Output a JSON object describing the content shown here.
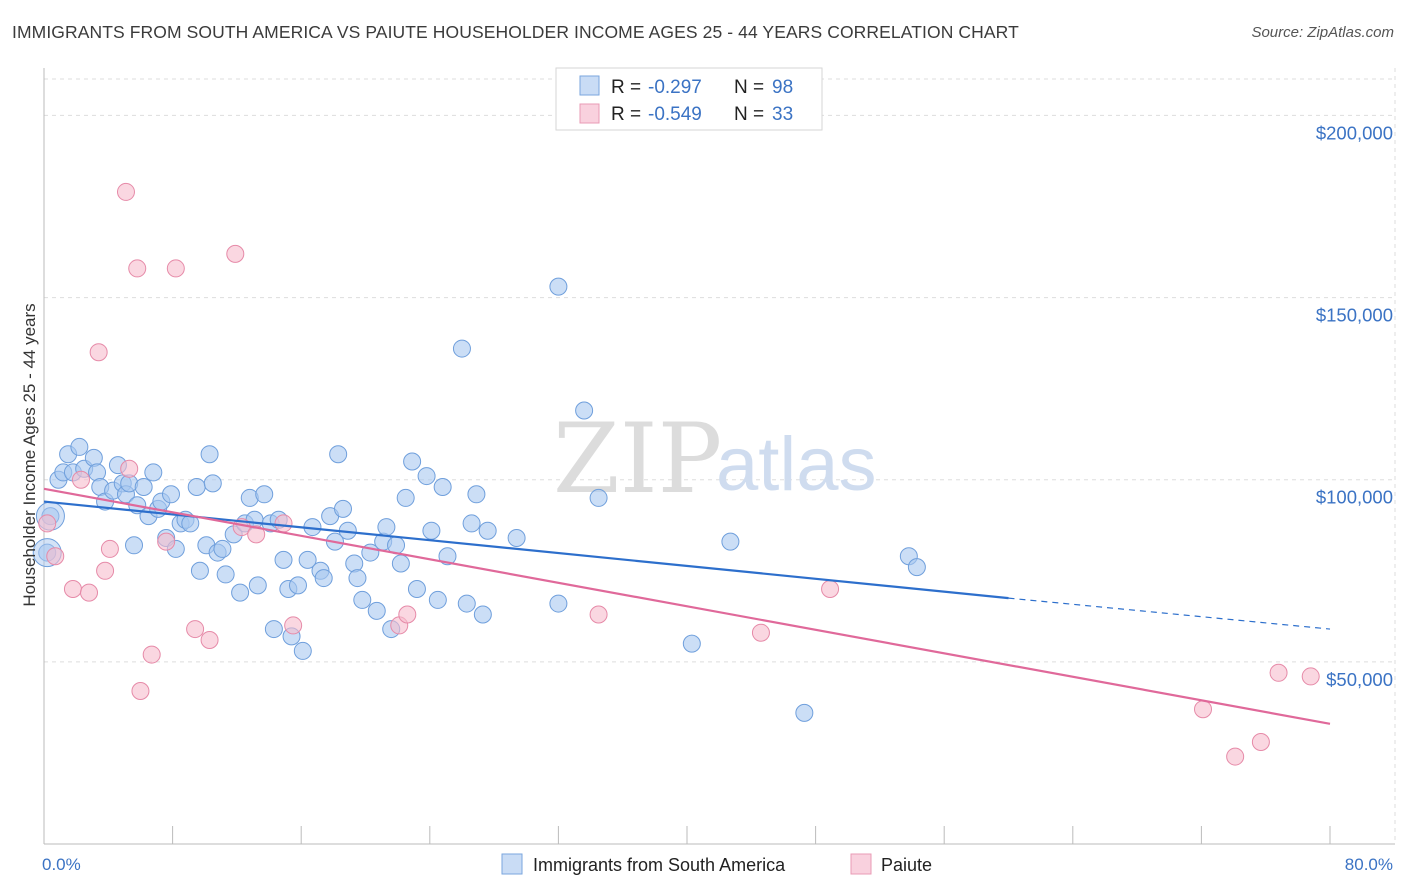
{
  "title": "IMMIGRANTS FROM SOUTH AMERICA VS PAIUTE HOUSEHOLDER INCOME AGES 25 - 44 YEARS CORRELATION CHART",
  "source": "Source: ZipAtlas.com",
  "watermark": {
    "zip": "ZIP",
    "atlas": "atlas"
  },
  "legend_box": {
    "rows": [
      {
        "r_label": "R = ",
        "r_value": "-0.297",
        "n_label": "N = ",
        "n_value": "98"
      },
      {
        "r_label": "R = ",
        "r_value": "-0.549",
        "n_label": "N = ",
        "n_value": "33"
      }
    ]
  },
  "colors": {
    "blue_fill": "#a9c8f0",
    "blue_stroke": "#6f9fdc",
    "blue_line": "#2d6fcc",
    "pink_fill": "#f6bccd",
    "pink_stroke": "#e68aa8",
    "pink_line": "#e0699a",
    "grid": "#dddddd",
    "axis_text": "#3b73c4"
  },
  "chart_data": {
    "type": "scatter",
    "title": "IMMIGRANTS FROM SOUTH AMERICA VS PAIUTE HOUSEHOLDER INCOME AGES 25 - 44 YEARS CORRELATION CHART",
    "xlabel": "",
    "ylabel": "Householder Income Ages 25 - 44 years",
    "xlim": [
      0,
      80
    ],
    "ylim": [
      0,
      210000
    ],
    "x_tick_labels": [
      "0.0%",
      "80.0%"
    ],
    "y_ticks": [
      50000,
      100000,
      150000,
      200000
    ],
    "y_tick_labels": [
      "$50,000",
      "$100,000",
      "$150,000",
      "$200,000"
    ],
    "grid": true,
    "legend_position": "bottom-center",
    "series": [
      {
        "name": "Immigrants from South America",
        "trend": {
          "x": [
            0,
            60
          ],
          "y": [
            94000,
            67500
          ],
          "dashed_extension_to": [
            80,
            59000
          ]
        },
        "points": [
          [
            0.2,
            80000
          ],
          [
            0.4,
            90000
          ],
          [
            0.9,
            100000
          ],
          [
            1.2,
            102000
          ],
          [
            1.5,
            107000
          ],
          [
            1.8,
            102000
          ],
          [
            2.2,
            109000
          ],
          [
            2.5,
            103000
          ],
          [
            3.1,
            106000
          ],
          [
            3.3,
            102000
          ],
          [
            3.5,
            98000
          ],
          [
            3.8,
            94000
          ],
          [
            4.3,
            97000
          ],
          [
            4.6,
            104000
          ],
          [
            4.9,
            99000
          ],
          [
            5.1,
            96000
          ],
          [
            5.3,
            99000
          ],
          [
            5.6,
            82000
          ],
          [
            5.8,
            93000
          ],
          [
            6.2,
            98000
          ],
          [
            6.5,
            90000
          ],
          [
            6.8,
            102000
          ],
          [
            7.1,
            92000
          ],
          [
            7.3,
            94000
          ],
          [
            7.6,
            84000
          ],
          [
            7.9,
            96000
          ],
          [
            8.2,
            81000
          ],
          [
            8.5,
            88000
          ],
          [
            8.8,
            89000
          ],
          [
            9.1,
            88000
          ],
          [
            9.5,
            98000
          ],
          [
            9.7,
            75000
          ],
          [
            10.1,
            82000
          ],
          [
            10.3,
            107000
          ],
          [
            10.5,
            99000
          ],
          [
            10.8,
            80000
          ],
          [
            11.1,
            81000
          ],
          [
            11.3,
            74000
          ],
          [
            11.8,
            85000
          ],
          [
            12.2,
            69000
          ],
          [
            12.5,
            88000
          ],
          [
            12.8,
            95000
          ],
          [
            13.1,
            89000
          ],
          [
            13.3,
            71000
          ],
          [
            13.7,
            96000
          ],
          [
            14.1,
            88000
          ],
          [
            14.3,
            59000
          ],
          [
            14.6,
            89000
          ],
          [
            14.9,
            78000
          ],
          [
            15.2,
            70000
          ],
          [
            15.4,
            57000
          ],
          [
            15.8,
            71000
          ],
          [
            16.1,
            53000
          ],
          [
            16.4,
            78000
          ],
          [
            16.7,
            87000
          ],
          [
            17.2,
            75000
          ],
          [
            17.4,
            73000
          ],
          [
            17.8,
            90000
          ],
          [
            18.1,
            83000
          ],
          [
            18.3,
            107000
          ],
          [
            18.6,
            92000
          ],
          [
            18.9,
            86000
          ],
          [
            19.3,
            77000
          ],
          [
            19.5,
            73000
          ],
          [
            19.8,
            67000
          ],
          [
            20.3,
            80000
          ],
          [
            20.7,
            64000
          ],
          [
            21.1,
            83000
          ],
          [
            21.3,
            87000
          ],
          [
            21.6,
            59000
          ],
          [
            21.9,
            82000
          ],
          [
            22.2,
            77000
          ],
          [
            22.5,
            95000
          ],
          [
            22.9,
            105000
          ],
          [
            23.2,
            70000
          ],
          [
            23.8,
            101000
          ],
          [
            24.1,
            86000
          ],
          [
            24.5,
            67000
          ],
          [
            24.8,
            98000
          ],
          [
            25.1,
            79000
          ],
          [
            26.0,
            136000
          ],
          [
            26.3,
            66000
          ],
          [
            26.6,
            88000
          ],
          [
            26.9,
            96000
          ],
          [
            27.3,
            63000
          ],
          [
            27.6,
            86000
          ],
          [
            29.4,
            84000
          ],
          [
            32.0,
            153000
          ],
          [
            32.0,
            66000
          ],
          [
            33.6,
            119000
          ],
          [
            34.5,
            95000
          ],
          [
            40.3,
            55000
          ],
          [
            42.7,
            83000
          ],
          [
            47.3,
            36000
          ],
          [
            53.8,
            79000
          ],
          [
            54.3,
            76000
          ]
        ]
      },
      {
        "name": "Paiute",
        "trend": {
          "x": [
            0,
            80
          ],
          "y": [
            97500,
            33000
          ]
        },
        "points": [
          [
            0.2,
            88000
          ],
          [
            0.7,
            79000
          ],
          [
            1.8,
            70000
          ],
          [
            2.3,
            100000
          ],
          [
            2.8,
            69000
          ],
          [
            3.4,
            135000
          ],
          [
            3.8,
            75000
          ],
          [
            4.1,
            81000
          ],
          [
            5.1,
            179000
          ],
          [
            5.3,
            103000
          ],
          [
            5.8,
            158000
          ],
          [
            6.0,
            42000
          ],
          [
            6.7,
            52000
          ],
          [
            7.6,
            83000
          ],
          [
            8.2,
            158000
          ],
          [
            9.4,
            59000
          ],
          [
            10.3,
            56000
          ],
          [
            11.9,
            162000
          ],
          [
            12.3,
            87000
          ],
          [
            13.2,
            85000
          ],
          [
            14.9,
            88000
          ],
          [
            15.5,
            60000
          ],
          [
            22.1,
            60000
          ],
          [
            22.6,
            63000
          ],
          [
            34.5,
            63000
          ],
          [
            44.6,
            58000
          ],
          [
            48.9,
            70000
          ],
          [
            72.1,
            37000
          ],
          [
            74.1,
            24000
          ],
          [
            75.7,
            28000
          ],
          [
            76.8,
            47000
          ],
          [
            78.8,
            46000
          ]
        ]
      }
    ]
  }
}
